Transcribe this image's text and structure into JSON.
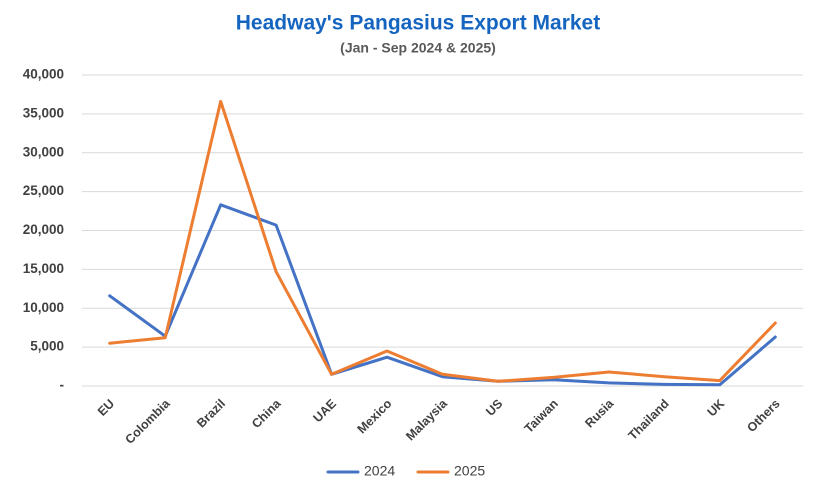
{
  "chart_data": {
    "type": "line",
    "title": "Headway's Pangasius Export Market",
    "subtitle": "(Jan - Sep 2024 & 2025)",
    "categories": [
      "EU",
      "Colombia",
      "Brazil",
      "China",
      "UAE",
      "Mexico",
      "Malaysia",
      "US",
      "Taiwan",
      "Rusia",
      "Thailand",
      "UK",
      "Others"
    ],
    "series": [
      {
        "name": "2024",
        "color": "#4472c4",
        "values": [
          11600,
          6400,
          23300,
          20700,
          1500,
          3700,
          1200,
          600,
          800,
          400,
          200,
          150,
          6300
        ]
      },
      {
        "name": "2025",
        "color": "#ed7d31",
        "values": [
          5500,
          6200,
          36600,
          14700,
          1500,
          4500,
          1500,
          600,
          1100,
          1800,
          1200,
          700,
          8100
        ]
      }
    ],
    "ylim": [
      0,
      40000
    ],
    "yticks": [
      {
        "value": 0,
        "label": "-"
      },
      {
        "value": 5000,
        "label": "5,000"
      },
      {
        "value": 10000,
        "label": "10,000"
      },
      {
        "value": 15000,
        "label": "15,000"
      },
      {
        "value": 20000,
        "label": "20,000"
      },
      {
        "value": 25000,
        "label": "25,000"
      },
      {
        "value": 30000,
        "label": "30,000"
      },
      {
        "value": 35000,
        "label": "35,000"
      },
      {
        "value": 40000,
        "label": "40,000"
      }
    ],
    "grid": true,
    "legend": "bottom"
  }
}
